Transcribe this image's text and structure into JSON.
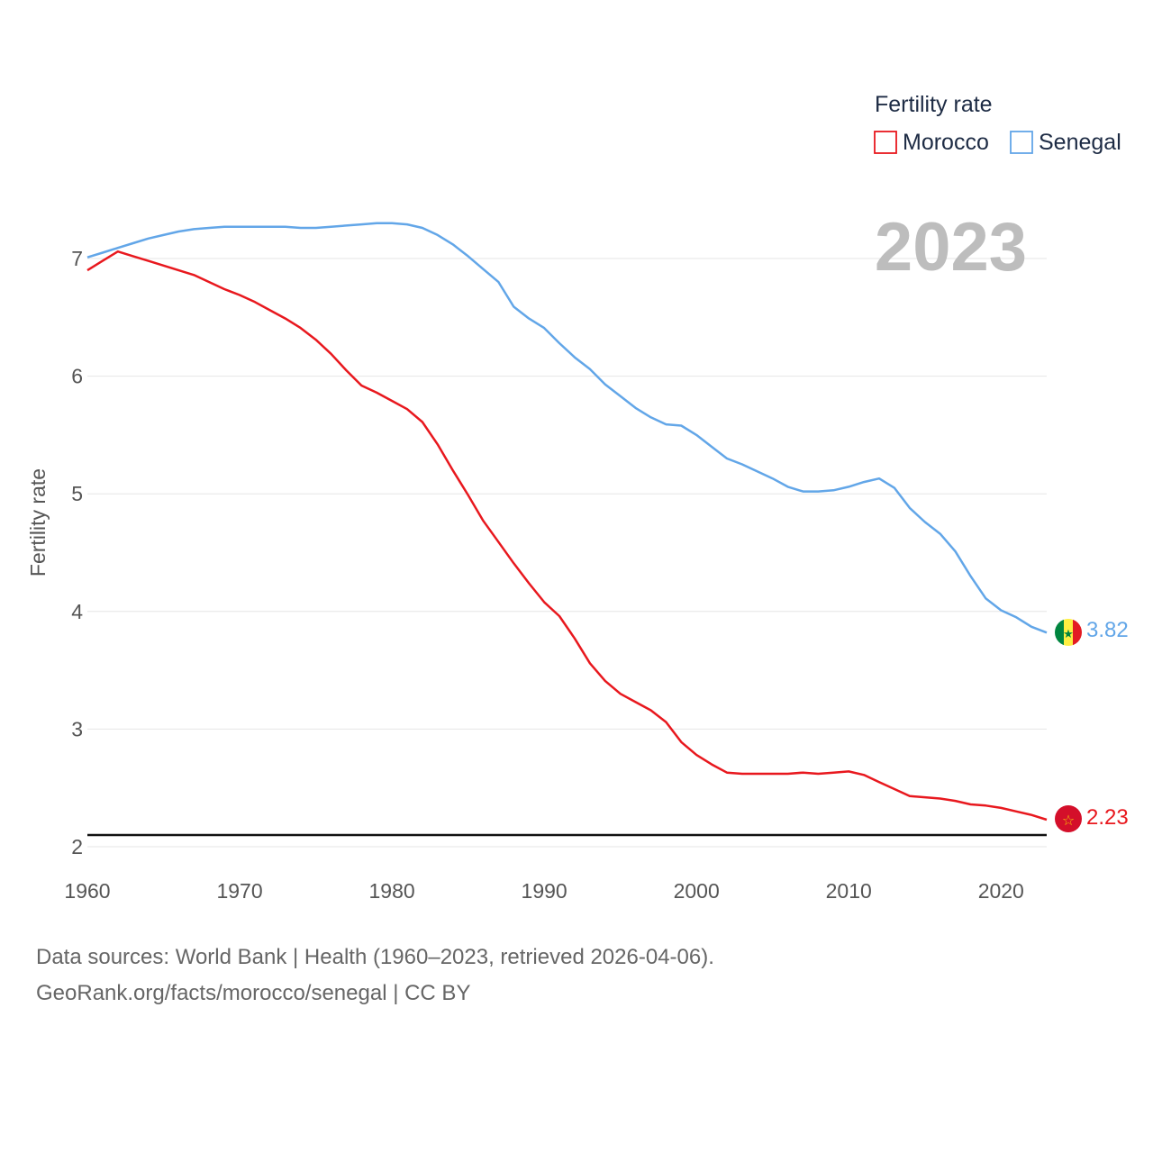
{
  "chart_data": {
    "type": "line",
    "title": "",
    "xlabel": "",
    "ylabel": "Fertility rate",
    "year_label": "2023",
    "legend_title": "Fertility rate",
    "legend_position": "top-right",
    "xlim": [
      1960,
      2023
    ],
    "ylim": [
      2,
      7.4
    ],
    "x_ticks": [
      1960,
      1970,
      1980,
      1990,
      2000,
      2010,
      2020
    ],
    "y_ticks": [
      2,
      3,
      4,
      5,
      6,
      7
    ],
    "reference_line": 2.1,
    "grid": true,
    "x": [
      1960,
      1961,
      1962,
      1963,
      1964,
      1965,
      1966,
      1967,
      1968,
      1969,
      1970,
      1971,
      1972,
      1973,
      1974,
      1975,
      1976,
      1977,
      1978,
      1979,
      1980,
      1981,
      1982,
      1983,
      1984,
      1985,
      1986,
      1987,
      1988,
      1989,
      1990,
      1991,
      1992,
      1993,
      1994,
      1995,
      1996,
      1997,
      1998,
      1999,
      2000,
      2001,
      2002,
      2003,
      2004,
      2005,
      2006,
      2007,
      2008,
      2009,
      2010,
      2011,
      2012,
      2013,
      2014,
      2015,
      2016,
      2017,
      2018,
      2019,
      2020,
      2021,
      2022,
      2023
    ],
    "series": [
      {
        "name": "Morocco",
        "color": "#e8181e",
        "end_label": "2.23",
        "values": [
          6.9,
          6.98,
          7.06,
          7.02,
          6.98,
          6.94,
          6.9,
          6.86,
          6.8,
          6.74,
          6.69,
          6.63,
          6.56,
          6.49,
          6.41,
          6.31,
          6.19,
          6.05,
          5.92,
          5.86,
          5.79,
          5.72,
          5.61,
          5.42,
          5.2,
          4.99,
          4.77,
          4.59,
          4.41,
          4.24,
          4.08,
          3.96,
          3.77,
          3.56,
          3.41,
          3.3,
          3.23,
          3.16,
          3.06,
          2.89,
          2.78,
          2.7,
          2.63,
          2.62,
          2.62,
          2.62,
          2.62,
          2.63,
          2.62,
          2.63,
          2.64,
          2.61,
          2.55,
          2.49,
          2.43,
          2.42,
          2.41,
          2.39,
          2.36,
          2.35,
          2.33,
          2.3,
          2.27,
          2.23
        ]
      },
      {
        "name": "Senegal",
        "color": "#62a6e8",
        "end_label": "3.82",
        "values": [
          7.01,
          7.05,
          7.09,
          7.13,
          7.17,
          7.2,
          7.23,
          7.25,
          7.26,
          7.27,
          7.27,
          7.27,
          7.27,
          7.27,
          7.26,
          7.26,
          7.27,
          7.28,
          7.29,
          7.3,
          7.3,
          7.29,
          7.26,
          7.2,
          7.12,
          7.02,
          6.91,
          6.8,
          6.59,
          6.49,
          6.41,
          6.28,
          6.16,
          6.06,
          5.93,
          5.83,
          5.73,
          5.65,
          5.59,
          5.58,
          5.5,
          5.4,
          5.3,
          5.25,
          5.19,
          5.13,
          5.06,
          5.02,
          5.02,
          5.03,
          5.06,
          5.1,
          5.13,
          5.05,
          4.88,
          4.76,
          4.66,
          4.51,
          4.3,
          4.11,
          4.01,
          3.95,
          3.87,
          3.82
        ]
      }
    ]
  },
  "footer": {
    "sources": "Data sources: World Bank | Health (1960–2023, retrieved 2026-04-06).",
    "link": "GeoRank.org/facts/morocco/senegal | CC BY"
  }
}
